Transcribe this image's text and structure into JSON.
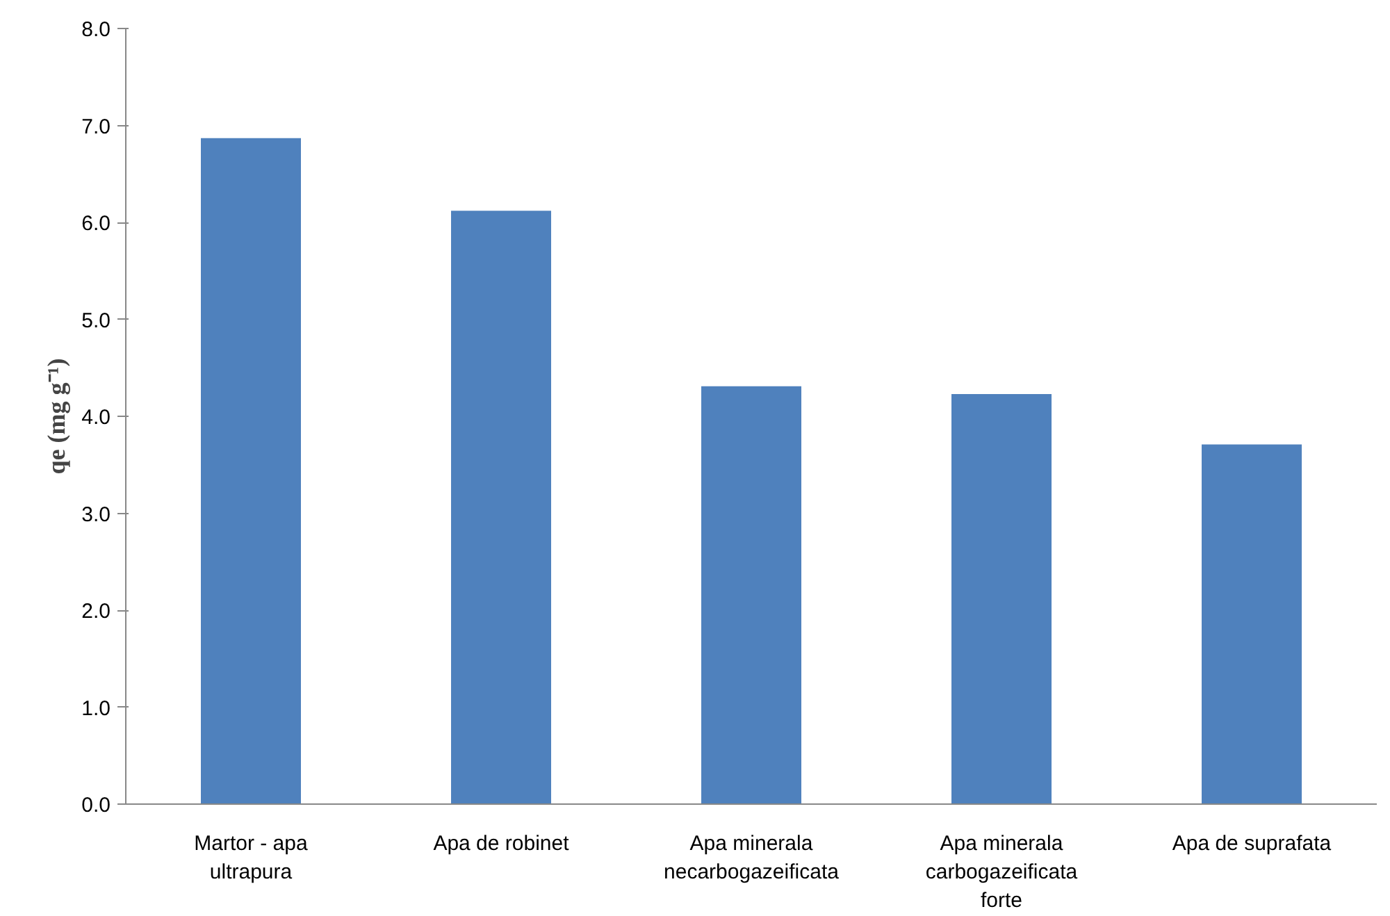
{
  "chart_data": {
    "type": "bar",
    "ylabel": "qe (mg g⁻¹)",
    "categories": [
      "Martor - apa ultrapura",
      "Apa de robinet",
      "Apa minerala necarbogazeificata",
      "Apa minerala carbogazeificata forte",
      "Apa de suprafata"
    ],
    "values": [
      6.87,
      6.12,
      4.31,
      4.23,
      3.71
    ],
    "color": "#4f81bd",
    "ylim": [
      0,
      8
    ],
    "yticks": [
      {
        "value": 0,
        "label": "0.0"
      },
      {
        "value": 1,
        "label": "1.0"
      },
      {
        "value": 2,
        "label": "2.0"
      },
      {
        "value": 3,
        "label": "3.0"
      },
      {
        "value": 4,
        "label": "4.0"
      },
      {
        "value": 5,
        "label": "5.0"
      },
      {
        "value": 6,
        "label": "6.0"
      },
      {
        "value": 7,
        "label": "7.0"
      },
      {
        "value": 8,
        "label": "8.0"
      }
    ],
    "grid": false
  }
}
